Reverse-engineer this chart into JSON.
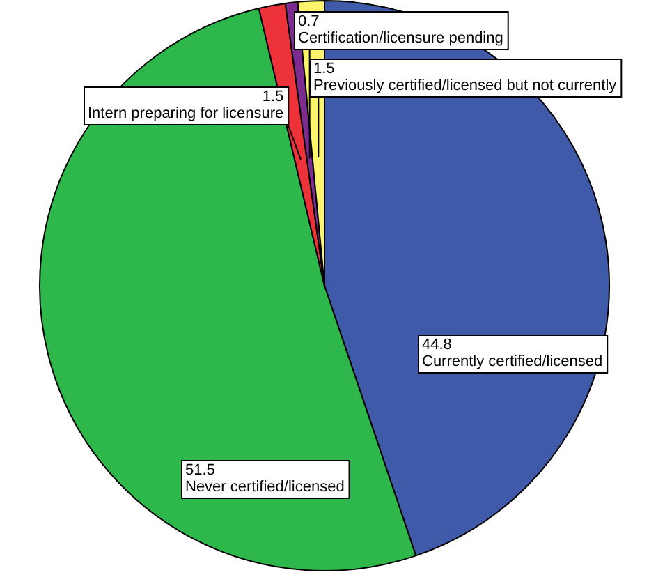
{
  "chart_data": {
    "type": "pie",
    "categories": [
      "Currently certified/licensed",
      "Never certified/licensed",
      "Intern preparing for licensure",
      "Certification/licensure pending",
      "Previously certified/licensed but not currently"
    ],
    "values": [
      44.8,
      51.5,
      1.5,
      0.7,
      1.5
    ],
    "colors": [
      "#3f5aa8",
      "#2eb84b",
      "#ee3239",
      "#7b2c8e",
      "#fdf46e"
    ],
    "data_labels": true,
    "legend": false
  }
}
